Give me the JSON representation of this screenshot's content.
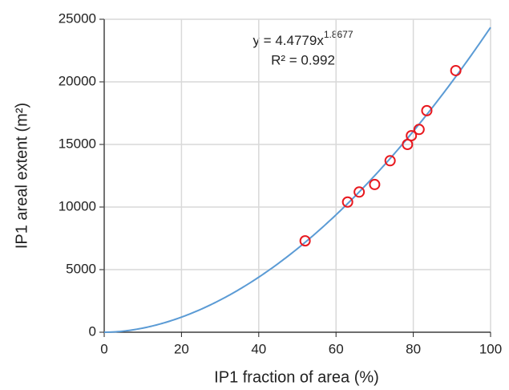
{
  "chart_data": {
    "type": "scatter",
    "xlabel": "IP1 fraction of area (%)",
    "ylabel": "IP1 areal extent (m²)",
    "x": [
      52,
      63,
      66,
      70,
      74,
      78.5,
      79.5,
      81.5,
      83.5,
      91
    ],
    "values": [
      7300,
      10400,
      11200,
      11800,
      13700,
      15000,
      15700,
      16200,
      17700,
      20900
    ],
    "color": "#e8191f",
    "xlim": [
      0,
      100
    ],
    "xticks": [
      0,
      20,
      40,
      60,
      80,
      100
    ],
    "ylim": [
      0,
      25000
    ],
    "yticks": [
      0,
      5000,
      10000,
      15000,
      20000,
      25000
    ],
    "grid": true,
    "trendline": {
      "type": "power",
      "coefficient": 4.4779,
      "exponent": 1.8677,
      "color": "#5b9bd5",
      "label": "y = 4.4779x",
      "r2_label": "R² = 0.992"
    }
  }
}
